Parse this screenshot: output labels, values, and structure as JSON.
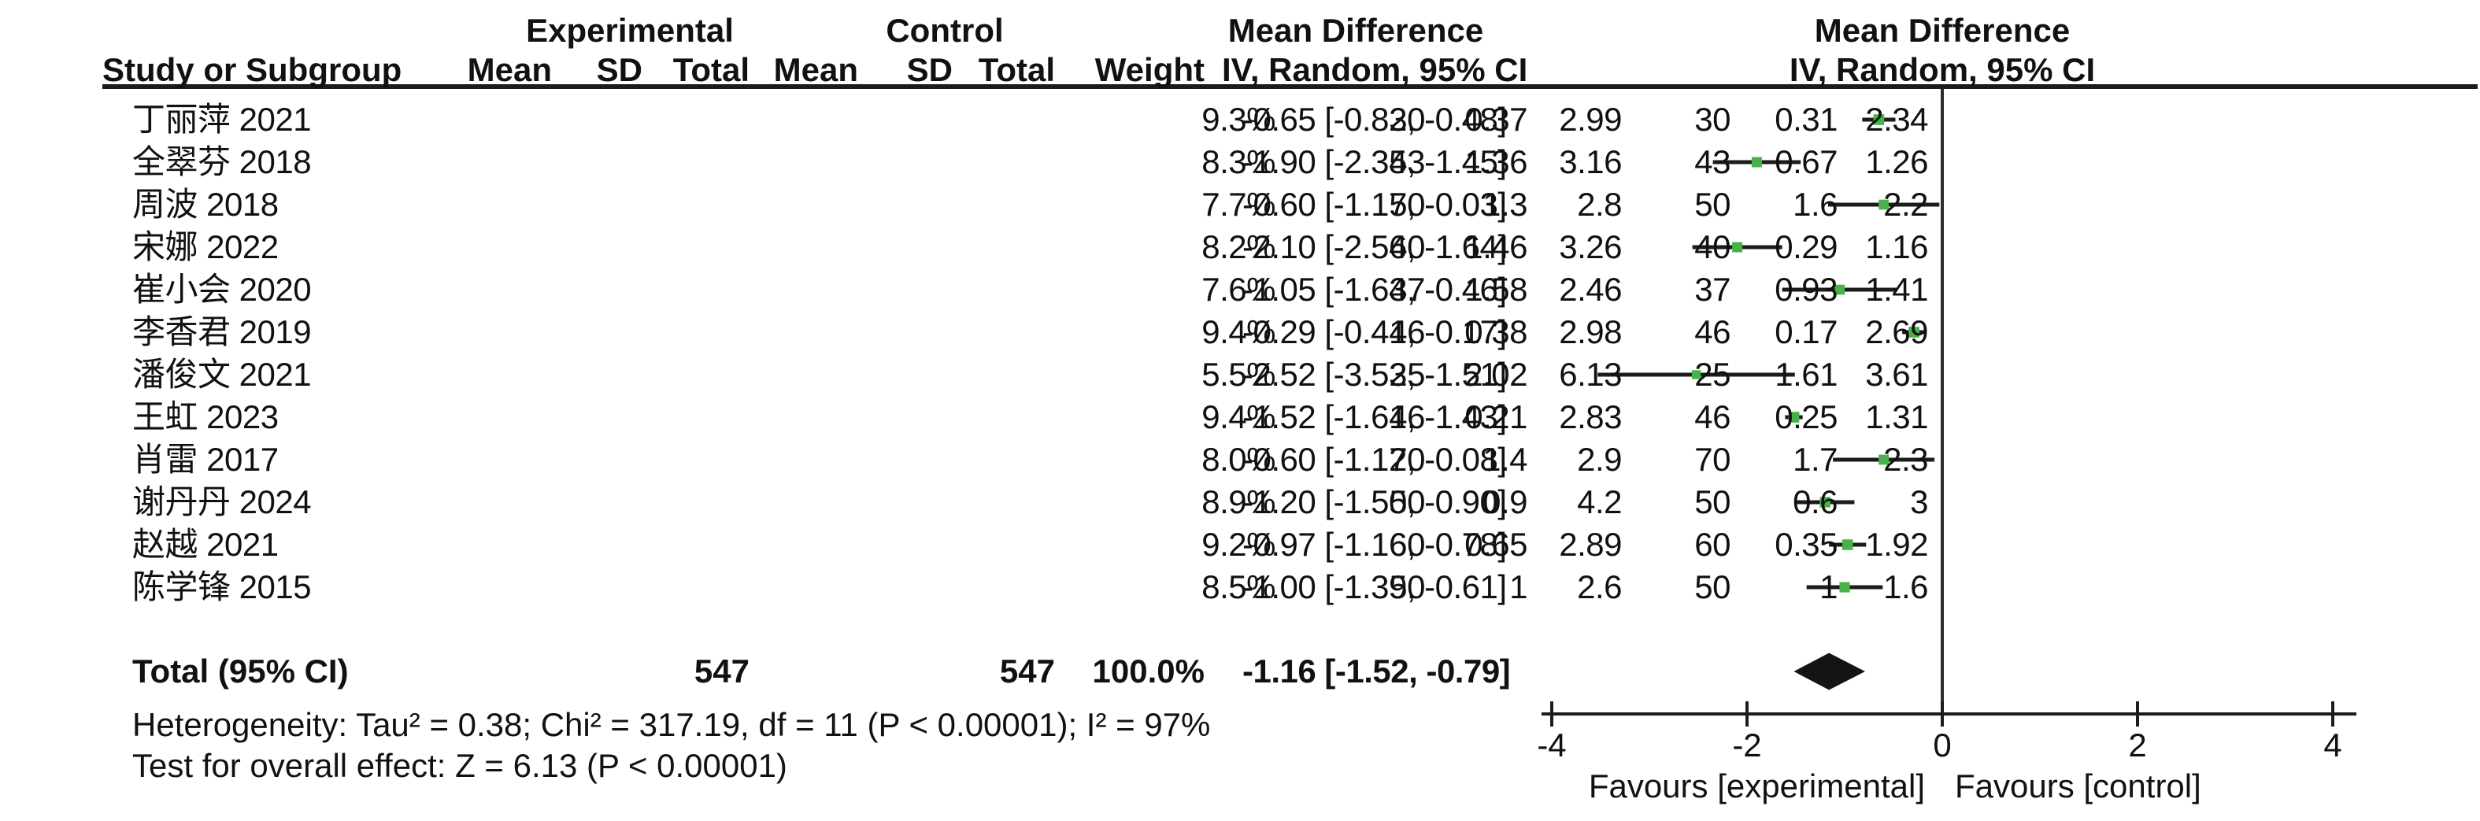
{
  "header": {
    "group_experimental": "Experimental",
    "group_control": "Control",
    "group_md_left": "Mean Difference",
    "group_md_right": "Mean Difference",
    "col_study": "Study or Subgroup",
    "col_mean": "Mean",
    "col_sd": "SD",
    "col_total": "Total",
    "col_mean2": "Mean",
    "col_sd2": "SD",
    "col_total2": "Total",
    "col_weight": "Weight",
    "col_ci": "IV, Random, 95% CI",
    "col_ci_plot": "IV, Random, 95% CI"
  },
  "chart_data": {
    "type": "forest",
    "effect_measure": "Mean Difference",
    "model": "IV, Random, 95% CI",
    "x_ticks": [
      -4,
      -2,
      0,
      2,
      4
    ],
    "xlim": [
      -4.1,
      4.25
    ],
    "favours_left": "Favours [experimental]",
    "favours_right": "Favours [control]",
    "studies": [
      {
        "name": "丁丽萍 2021",
        "exp_mean": "2.34",
        "exp_sd": "0.31",
        "exp_total": "30",
        "ctl_mean": "2.99",
        "ctl_sd": "0.37",
        "ctl_total": "30",
        "weight": "9.3%",
        "weight_pct": 9.3,
        "ci_text": "-0.65 [-0.82, -0.48]",
        "md": -0.65,
        "lo": -0.82,
        "hi": -0.48
      },
      {
        "name": "全翠芬 2018",
        "exp_mean": "1.26",
        "exp_sd": "0.67",
        "exp_total": "43",
        "ctl_mean": "3.16",
        "ctl_sd": "1.36",
        "ctl_total": "43",
        "weight": "8.3%",
        "weight_pct": 8.3,
        "ci_text": "-1.90 [-2.35, -1.45]",
        "md": -1.9,
        "lo": -2.35,
        "hi": -1.45
      },
      {
        "name": "周波 2018",
        "exp_mean": "2.2",
        "exp_sd": "1.6",
        "exp_total": "50",
        "ctl_mean": "2.8",
        "ctl_sd": "1.3",
        "ctl_total": "50",
        "weight": "7.7%",
        "weight_pct": 7.7,
        "ci_text": "-0.60 [-1.17, -0.03]",
        "md": -0.6,
        "lo": -1.17,
        "hi": -0.03
      },
      {
        "name": "宋娜 2022",
        "exp_mean": "1.16",
        "exp_sd": "0.29",
        "exp_total": "40",
        "ctl_mean": "3.26",
        "ctl_sd": "1.46",
        "ctl_total": "40",
        "weight": "8.2%",
        "weight_pct": 8.2,
        "ci_text": "-2.10 [-2.56, -1.64]",
        "md": -2.1,
        "lo": -2.56,
        "hi": -1.64
      },
      {
        "name": "崔小会 2020",
        "exp_mean": "1.41",
        "exp_sd": "0.93",
        "exp_total": "37",
        "ctl_mean": "2.46",
        "ctl_sd": "1.58",
        "ctl_total": "37",
        "weight": "7.6%",
        "weight_pct": 7.6,
        "ci_text": "-1.05 [-1.64, -0.46]",
        "md": -1.05,
        "lo": -1.64,
        "hi": -0.46
      },
      {
        "name": "李香君 2019",
        "exp_mean": "2.69",
        "exp_sd": "0.17",
        "exp_total": "46",
        "ctl_mean": "2.98",
        "ctl_sd": "0.38",
        "ctl_total": "46",
        "weight": "9.4%",
        "weight_pct": 9.4,
        "ci_text": "-0.29 [-0.41, -0.17]",
        "md": -0.29,
        "lo": -0.41,
        "hi": -0.17
      },
      {
        "name": "潘俊文 2021",
        "exp_mean": "3.61",
        "exp_sd": "1.61",
        "exp_total": "25",
        "ctl_mean": "6.13",
        "ctl_sd": "2.02",
        "ctl_total": "25",
        "weight": "5.5%",
        "weight_pct": 5.5,
        "ci_text": "-2.52 [-3.53, -1.51]",
        "md": -2.52,
        "lo": -3.53,
        "hi": -1.51
      },
      {
        "name": "王虹 2023",
        "exp_mean": "1.31",
        "exp_sd": "0.25",
        "exp_total": "46",
        "ctl_mean": "2.83",
        "ctl_sd": "0.21",
        "ctl_total": "46",
        "weight": "9.4%",
        "weight_pct": 9.4,
        "ci_text": "-1.52 [-1.61, -1.43]",
        "md": -1.52,
        "lo": -1.61,
        "hi": -1.43
      },
      {
        "name": "肖雷 2017",
        "exp_mean": "2.3",
        "exp_sd": "1.7",
        "exp_total": "70",
        "ctl_mean": "2.9",
        "ctl_sd": "1.4",
        "ctl_total": "70",
        "weight": "8.0%",
        "weight_pct": 8.0,
        "ci_text": "-0.60 [-1.12, -0.08]",
        "md": -0.6,
        "lo": -1.12,
        "hi": -0.08
      },
      {
        "name": "谢丹丹 2024",
        "exp_mean": "3",
        "exp_sd": "0.6",
        "exp_total": "50",
        "ctl_mean": "4.2",
        "ctl_sd": "0.9",
        "ctl_total": "50",
        "weight": "8.9%",
        "weight_pct": 8.9,
        "ci_text": "-1.20 [-1.50, -0.90]",
        "md": -1.2,
        "lo": -1.5,
        "hi": -0.9
      },
      {
        "name": "赵越 2021",
        "exp_mean": "1.92",
        "exp_sd": "0.35",
        "exp_total": "60",
        "ctl_mean": "2.89",
        "ctl_sd": "0.65",
        "ctl_total": "60",
        "weight": "9.2%",
        "weight_pct": 9.2,
        "ci_text": "-0.97 [-1.16, -0.78]",
        "md": -0.97,
        "lo": -1.16,
        "hi": -0.78
      },
      {
        "name": "陈学锋 2015",
        "exp_mean": "1.6",
        "exp_sd": "1",
        "exp_total": "50",
        "ctl_mean": "2.6",
        "ctl_sd": "1",
        "ctl_total": "50",
        "weight": "8.5%",
        "weight_pct": 8.5,
        "ci_text": "-1.00 [-1.39, -0.61]",
        "md": -1.0,
        "lo": -1.39,
        "hi": -0.61
      }
    ],
    "total": {
      "label": "Total (95% CI)",
      "exp_total": "547",
      "ctl_total": "547",
      "weight": "100.0%",
      "ci_text": "-1.16 [-1.52, -0.79]",
      "md": -1.16,
      "lo": -1.52,
      "hi": -0.79
    }
  },
  "footer": {
    "heterogeneity": "Heterogeneity: Tau² = 0.38; Chi² = 317.19, df = 11 (P < 0.00001); I² = 97%",
    "overall_effect": "Test for overall effect: Z = 6.13 (P < 0.00001)"
  },
  "colors": {
    "marker_green": "#47B247",
    "line_black": "#1c1c1c",
    "diamond_black": "#141414"
  }
}
